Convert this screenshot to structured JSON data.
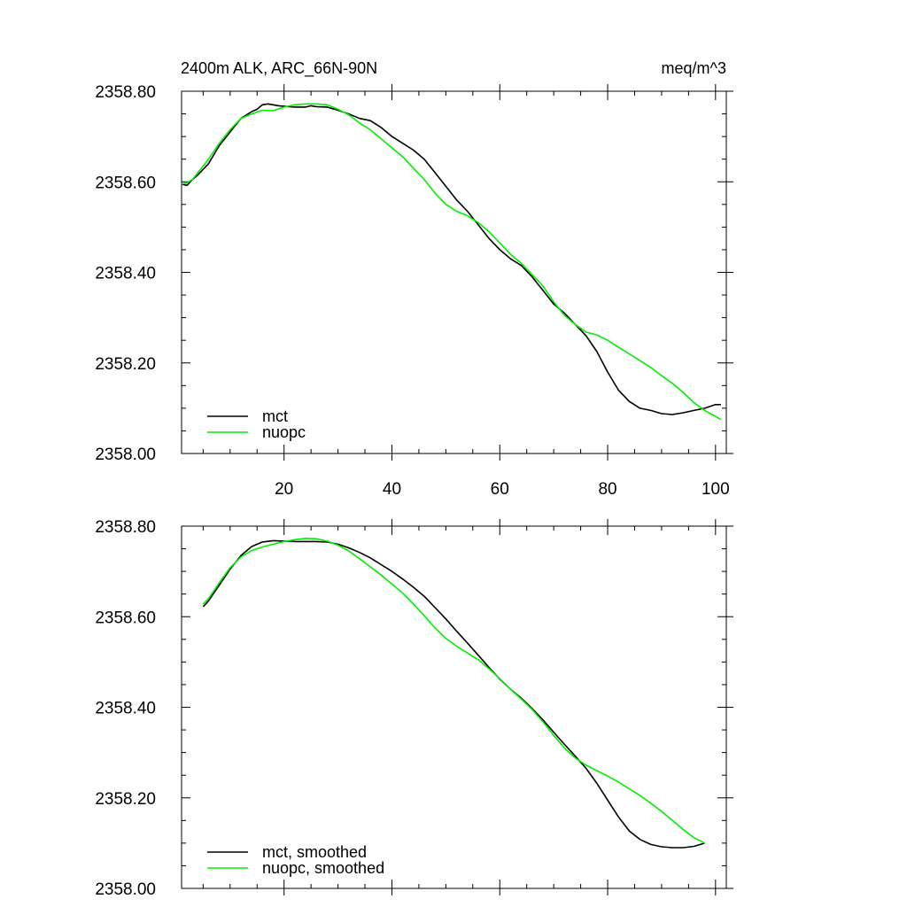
{
  "chart_data": [
    {
      "type": "line",
      "title_left": "2400m ALK, ARC_66N-90N",
      "title_right": "meq/m^3",
      "xlim": [
        1,
        102
      ],
      "ylim": [
        2358.0,
        2358.8
      ],
      "xticks": [
        20,
        40,
        60,
        80,
        100
      ],
      "xtick_labels": [
        "20",
        "40",
        "60",
        "80",
        "100"
      ],
      "yticks": [
        2358.0,
        2358.2,
        2358.4,
        2358.6,
        2358.8
      ],
      "ytick_labels": [
        "2358.00",
        "2358.20",
        "2358.40",
        "2358.60",
        "2358.80"
      ],
      "legend_position": "bottom-left",
      "series": [
        {
          "name": "mct",
          "color": "#000000",
          "x": [
            1,
            2,
            3,
            4,
            6,
            8,
            10,
            12,
            14,
            15,
            16,
            17,
            19,
            20,
            22,
            24,
            25,
            26,
            28,
            30,
            32,
            34,
            36,
            38,
            40,
            42,
            44,
            46,
            48,
            50,
            52,
            54,
            56,
            58,
            60,
            62,
            64,
            66,
            68,
            70,
            72,
            74,
            76,
            78,
            80,
            82,
            84,
            86,
            88,
            90,
            92,
            94,
            96,
            98,
            100,
            101
          ],
          "values": [
            2358.595,
            2358.592,
            2358.605,
            2358.615,
            2358.64,
            2358.68,
            2358.71,
            2358.74,
            2358.755,
            2358.76,
            2358.77,
            2358.772,
            2358.768,
            2358.767,
            2358.765,
            2358.765,
            2358.768,
            2358.766,
            2358.765,
            2358.758,
            2358.75,
            2358.74,
            2358.735,
            2358.72,
            2358.7,
            2358.685,
            2358.67,
            2358.65,
            2358.62,
            2358.59,
            2358.56,
            2358.535,
            2358.505,
            2358.475,
            2358.45,
            2358.43,
            2358.415,
            2358.39,
            2358.36,
            2358.33,
            2358.31,
            2358.285,
            2358.26,
            2358.225,
            2358.18,
            2358.14,
            2358.115,
            2358.1,
            2358.095,
            2358.088,
            2358.086,
            2358.09,
            2358.095,
            2358.1,
            2358.108,
            2358.108
          ]
        },
        {
          "name": "nuopc",
          "color": "#00ee00",
          "x": [
            1,
            2,
            3,
            4,
            6,
            8,
            10,
            12,
            14,
            16,
            18,
            20,
            22,
            24,
            26,
            28,
            30,
            32,
            34,
            36,
            38,
            40,
            42,
            44,
            46,
            48,
            50,
            52,
            54,
            56,
            58,
            60,
            62,
            64,
            66,
            68,
            70,
            72,
            74,
            76,
            78,
            80,
            82,
            84,
            86,
            88,
            90,
            92,
            94,
            96,
            98,
            100,
            101
          ],
          "values": [
            2358.595,
            2358.598,
            2358.605,
            2358.62,
            2358.65,
            2358.685,
            2358.715,
            2358.74,
            2358.75,
            2358.758,
            2358.757,
            2358.765,
            2358.77,
            2358.772,
            2358.772,
            2358.77,
            2358.76,
            2358.748,
            2358.73,
            2358.715,
            2358.695,
            2358.675,
            2358.655,
            2358.63,
            2358.605,
            2358.575,
            2358.55,
            2358.535,
            2358.525,
            2358.51,
            2358.49,
            2358.465,
            2358.44,
            2358.42,
            2358.395,
            2358.37,
            2358.335,
            2358.305,
            2358.285,
            2358.268,
            2358.262,
            2358.25,
            2358.235,
            2358.22,
            2358.205,
            2358.19,
            2358.172,
            2358.155,
            2358.135,
            2358.112,
            2358.095,
            2358.082,
            2358.075
          ]
        }
      ]
    },
    {
      "type": "line",
      "xlim": [
        1,
        102
      ],
      "ylim": [
        2358.0,
        2358.8
      ],
      "xticks": [
        20,
        40,
        60,
        80,
        100
      ],
      "xtick_labels": [],
      "yticks": [
        2358.0,
        2358.2,
        2358.4,
        2358.6,
        2358.8
      ],
      "ytick_labels": [
        "2358.00",
        "2358.20",
        "2358.40",
        "2358.60",
        "2358.80"
      ],
      "legend_position": "bottom-left",
      "series": [
        {
          "name": "mct, smoothed",
          "color": "#000000",
          "x": [
            5,
            6,
            8,
            10,
            12,
            14,
            16,
            18,
            20,
            22,
            24,
            26,
            28,
            30,
            32,
            34,
            36,
            38,
            40,
            42,
            44,
            46,
            48,
            50,
            52,
            54,
            56,
            58,
            60,
            62,
            64,
            66,
            68,
            70,
            72,
            74,
            76,
            78,
            80,
            82,
            84,
            86,
            88,
            90,
            92,
            94,
            96,
            98
          ],
          "values": [
            2358.622,
            2358.635,
            2358.67,
            2358.705,
            2358.735,
            2358.755,
            2358.765,
            2358.768,
            2358.767,
            2358.766,
            2358.766,
            2358.766,
            2358.765,
            2358.76,
            2358.752,
            2358.742,
            2358.73,
            2358.715,
            2358.7,
            2358.683,
            2358.665,
            2358.645,
            2358.62,
            2358.595,
            2358.568,
            2358.542,
            2358.515,
            2358.488,
            2358.462,
            2358.44,
            2358.42,
            2358.397,
            2358.372,
            2358.345,
            2358.318,
            2358.292,
            2358.265,
            2358.232,
            2358.195,
            2358.158,
            2358.127,
            2358.108,
            2358.097,
            2358.092,
            2358.09,
            2358.09,
            2358.093,
            2358.1
          ]
        },
        {
          "name": "nuopc, smoothed",
          "color": "#00ee00",
          "x": [
            5,
            6,
            8,
            10,
            12,
            14,
            16,
            18,
            20,
            22,
            24,
            26,
            28,
            30,
            32,
            34,
            36,
            38,
            40,
            42,
            44,
            46,
            48,
            50,
            52,
            54,
            56,
            58,
            60,
            62,
            64,
            66,
            68,
            70,
            72,
            74,
            76,
            78,
            80,
            82,
            84,
            86,
            88,
            90,
            92,
            94,
            96,
            98
          ],
          "values": [
            2358.628,
            2358.64,
            2358.675,
            2358.708,
            2358.732,
            2358.746,
            2358.754,
            2358.76,
            2358.766,
            2358.77,
            2358.773,
            2358.772,
            2358.767,
            2358.758,
            2358.745,
            2358.728,
            2358.71,
            2358.692,
            2358.672,
            2358.652,
            2358.628,
            2358.602,
            2358.575,
            2358.552,
            2358.535,
            2358.52,
            2358.505,
            2358.485,
            2358.463,
            2358.44,
            2358.418,
            2358.395,
            2358.368,
            2358.338,
            2358.31,
            2358.288,
            2358.272,
            2358.26,
            2358.248,
            2358.235,
            2358.22,
            2358.205,
            2358.188,
            2358.17,
            2358.15,
            2358.13,
            2358.112,
            2358.1
          ]
        }
      ]
    }
  ]
}
